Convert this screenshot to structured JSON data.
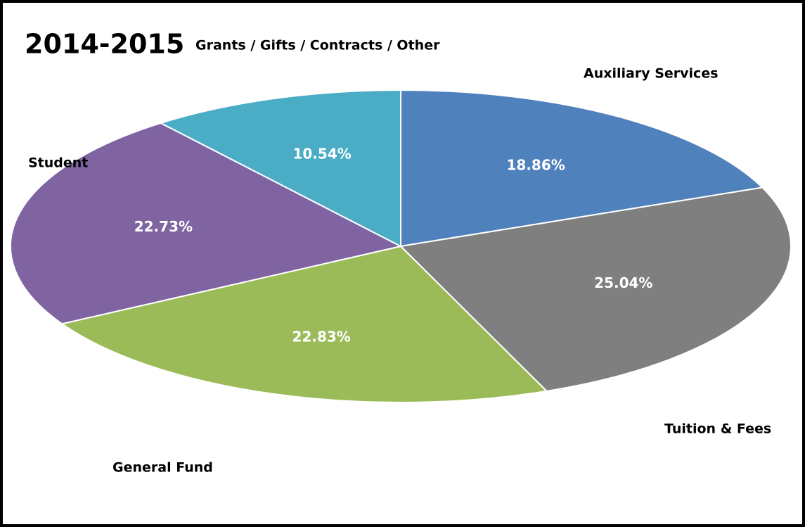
{
  "chart_data": {
    "type": "pie",
    "title": "2014-2015",
    "categories": [
      "Auxiliary Services",
      "Tuition & Fees",
      "General Fund",
      "Student",
      "Grants / Gifts / Contracts / Other"
    ],
    "values": [
      18.86,
      25.04,
      22.83,
      22.73,
      10.54
    ],
    "value_labels": [
      "18.86%",
      "25.04%",
      "22.83%",
      "22.73%",
      "10.54%"
    ],
    "colors": [
      "#4f81bd",
      "#7f7f7f",
      "#9bbb59",
      "#8064a2",
      "#4bacc6"
    ]
  }
}
